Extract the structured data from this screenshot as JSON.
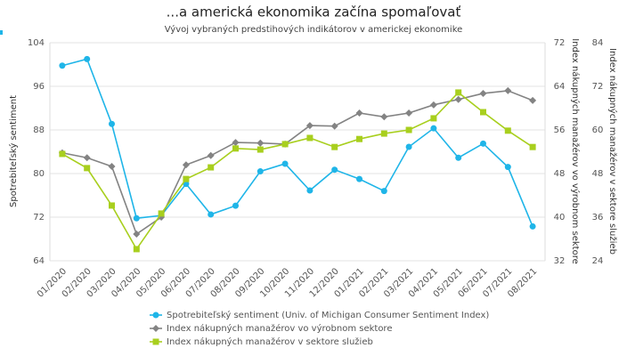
{
  "chart_data": {
    "type": "line",
    "title": "...a americká ekonomika začína spomaľovať",
    "subtitle": "Vývoj vybraných predstihových indikátorov v americkej ekonomike",
    "ylabel": "Spotrebiteľský sentiment",
    "y2label": "Index nákupných manažérov vo výrobnom sektore",
    "y3label": "Index nákupných manažérov v sektore služieb",
    "categories": [
      "01/2020",
      "02/2020",
      "03/2020",
      "04/2020",
      "05/2020",
      "06/2020",
      "07/2020",
      "08/2020",
      "09/2020",
      "10/2020",
      "11/2020",
      "12/2020",
      "01/2021",
      "02/2021",
      "03/2021",
      "04/2021",
      "05/2021",
      "06/2021",
      "07/2021",
      "08/2021"
    ],
    "ylim": [
      64,
      104
    ],
    "yticks": [
      64,
      72,
      80,
      88,
      96,
      104
    ],
    "y2lim": [
      32,
      72
    ],
    "y2ticks": [
      32,
      40,
      48,
      56,
      64,
      72
    ],
    "y3lim": [
      24,
      84
    ],
    "y3ticks": [
      24,
      36,
      48,
      60,
      72,
      84
    ],
    "grid": true,
    "series": [
      {
        "name": "Spotrebiteľský sentiment (Univ. of Michigan Consumer Sentiment Index)",
        "color": "#1fb5e8",
        "marker": "circle",
        "axis": "y",
        "values": [
          99.8,
          101.0,
          89.1,
          71.8,
          72.3,
          78.1,
          72.5,
          74.1,
          80.4,
          81.8,
          76.9,
          80.7,
          79.0,
          76.8,
          84.9,
          88.3,
          82.9,
          85.5,
          81.2,
          70.3
        ]
      },
      {
        "name": "Index nákupných manažérov vo výrobnom sektore",
        "color": "#838383",
        "marker": "diamond",
        "axis": "y2",
        "values": [
          51.8,
          50.9,
          49.3,
          36.9,
          40.0,
          49.6,
          51.3,
          53.7,
          53.6,
          53.4,
          56.8,
          56.7,
          59.1,
          58.4,
          59.1,
          60.6,
          61.6,
          62.7,
          63.2,
          61.4
        ]
      },
      {
        "name": "Index nákupných manažérov v sektore služieb",
        "color": "#a8cf1e",
        "marker": "square",
        "axis": "y3",
        "values": [
          53.4,
          49.5,
          39.2,
          27.2,
          37.0,
          46.5,
          49.7,
          54.9,
          54.6,
          56.1,
          57.8,
          55.3,
          57.5,
          59.0,
          60.0,
          63.2,
          70.3,
          64.9,
          59.8,
          55.3
        ]
      }
    ]
  }
}
